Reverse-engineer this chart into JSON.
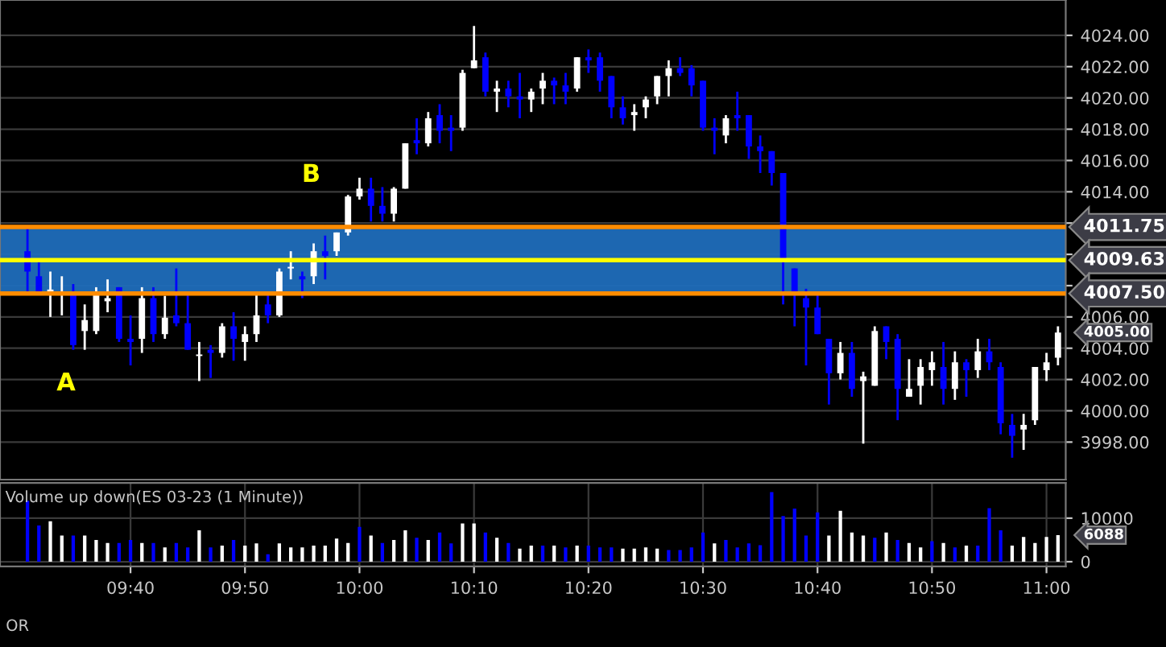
{
  "chart_data": [
    {
      "type": "candlestick",
      "x": [
        9.5167,
        9.5333,
        9.55,
        9.5667,
        9.5833,
        9.6,
        9.6167,
        9.6333,
        9.65,
        9.6667,
        9.6833,
        9.7,
        9.7167,
        9.7333,
        9.75,
        9.7667,
        9.7833,
        9.8,
        9.8167,
        9.8333,
        9.85,
        9.8667,
        9.8833,
        9.9,
        9.9167,
        9.9333,
        9.95,
        9.9667,
        9.9833,
        10.0,
        10.0167,
        10.0333,
        10.05,
        10.0667,
        10.0833,
        10.1,
        10.1167,
        10.1333,
        10.15,
        10.1667,
        10.1833,
        10.2,
        10.2167,
        10.2333,
        10.25,
        10.2667,
        10.2833,
        10.3,
        10.3167,
        10.3333,
        10.35,
        10.3667,
        10.3833,
        10.4,
        10.4167,
        10.4333,
        10.45,
        10.4667,
        10.4833,
        10.5,
        10.5167,
        10.5333,
        10.55,
        10.5667,
        10.5833,
        10.6,
        10.6167,
        10.6333,
        10.65,
        10.6667,
        10.6833,
        10.7,
        10.7167,
        10.7333,
        10.75,
        10.7667,
        10.7833,
        10.8,
        10.8167,
        10.8333,
        10.85,
        10.8667,
        10.8833,
        10.9,
        10.9167,
        10.9333,
        10.95,
        10.9667,
        10.9833,
        11.0,
        11.0167
      ],
      "ohlc": [
        [
          4010.2,
          4011.7,
          4007.6,
          4008.9
        ],
        [
          4008.6,
          4009.5,
          4007.4,
          4007.4
        ],
        [
          4007.5,
          4008.9,
          4006.0,
          4007.75
        ],
        [
          4007.5,
          4008.6,
          4006.1,
          4007.6
        ],
        [
          4007.6,
          4008.1,
          4003.9,
          4004.2
        ],
        [
          4005.1,
          4006.8,
          4003.9,
          4005.8
        ],
        [
          4005.1,
          4007.9,
          4004.9,
          4007.6
        ],
        [
          4007.0,
          4008.4,
          4006.3,
          4007.2
        ],
        [
          4007.9,
          4007.9,
          4004.4,
          4004.6
        ],
        [
          4004.6,
          4006.1,
          4002.9,
          4004.4
        ],
        [
          4004.6,
          4007.9,
          4003.7,
          4007.2
        ],
        [
          4007.2,
          4007.9,
          4004.4,
          4004.9
        ],
        [
          4004.9,
          4007.35,
          4004.6,
          4005.95
        ],
        [
          4006.1,
          4009.1,
          4005.4,
          4005.6
        ],
        [
          4005.6,
          4007.4,
          4003.9,
          4003.9
        ],
        [
          4003.5,
          4004.4,
          4001.9,
          4003.6
        ],
        [
          4003.9,
          4004.2,
          4002.1,
          4003.7
        ],
        [
          4003.7,
          4005.6,
          4003.4,
          4005.4
        ],
        [
          4005.4,
          4006.3,
          4003.2,
          4004.6
        ],
        [
          4004.4,
          4005.4,
          4003.2,
          4004.9
        ],
        [
          4004.9,
          4007.4,
          4004.4,
          4006.1
        ],
        [
          4006.8,
          4007.4,
          4005.6,
          4006.1
        ],
        [
          4006.1,
          4009.1,
          4006.0,
          4008.9
        ],
        [
          4009.1,
          4010.2,
          4008.4,
          4009.2
        ],
        [
          4008.6,
          4008.9,
          4007.2,
          4008.4
        ],
        [
          4008.6,
          4010.7,
          4008.1,
          4010.2
        ],
        [
          4010.2,
          4011.2,
          4008.4,
          4009.9
        ],
        [
          4010.2,
          4011.4,
          4009.9,
          4011.4
        ],
        [
          4011.4,
          4013.8,
          4011.2,
          4013.7
        ],
        [
          4013.7,
          4014.9,
          4013.5,
          4014.2
        ],
        [
          4014.2,
          4014.9,
          4012.1,
          4013.1
        ],
        [
          4013.1,
          4014.3,
          4012.1,
          4012.6
        ],
        [
          4012.6,
          4014.3,
          4012.1,
          4014.2
        ],
        [
          4014.2,
          4017.1,
          4014.2,
          4017.1
        ],
        [
          4017.3,
          4018.7,
          4016.4,
          4017.1
        ],
        [
          4017.1,
          4019.1,
          4016.9,
          4018.7
        ],
        [
          4018.9,
          4019.6,
          4017.1,
          4017.9
        ],
        [
          4018.1,
          4018.9,
          4016.6,
          4017.9
        ],
        [
          4018.1,
          4021.8,
          4017.9,
          4021.6
        ],
        [
          4021.9,
          4024.6,
          4021.9,
          4022.4
        ],
        [
          4022.6,
          4022.9,
          4020.1,
          4020.4
        ],
        [
          4020.4,
          4021.1,
          4019.1,
          4020.6
        ],
        [
          4020.6,
          4021.1,
          4019.4,
          4020.1
        ],
        [
          4020.1,
          4021.6,
          4018.7,
          4019.9
        ],
        [
          4019.9,
          4020.6,
          4019.1,
          4020.4
        ],
        [
          4020.6,
          4021.6,
          4019.6,
          4021.1
        ],
        [
          4021.1,
          4021.3,
          4019.6,
          4020.8
        ],
        [
          4020.8,
          4021.6,
          4019.6,
          4020.4
        ],
        [
          4020.6,
          4022.6,
          4020.4,
          4022.6
        ],
        [
          4022.6,
          4023.1,
          4021.6,
          4022.4
        ],
        [
          4022.6,
          4022.9,
          4020.4,
          4021.1
        ],
        [
          4021.4,
          4021.4,
          4018.7,
          4019.4
        ],
        [
          4019.4,
          4020.1,
          4018.3,
          4018.7
        ],
        [
          4018.9,
          4019.6,
          4017.9,
          4019.1
        ],
        [
          4019.4,
          4020.1,
          4018.7,
          4019.9
        ],
        [
          4020.1,
          4021.4,
          4019.6,
          4021.4
        ],
        [
          4021.4,
          4022.4,
          4020.1,
          4021.9
        ],
        [
          4021.9,
          4022.6,
          4021.4,
          4021.6
        ],
        [
          4021.9,
          4022.1,
          4020.1,
          4020.8
        ],
        [
          4021.1,
          4021.1,
          4017.9,
          4018.1
        ],
        [
          4018.1,
          4018.7,
          4016.4,
          4017.9
        ],
        [
          4017.6,
          4018.9,
          4017.1,
          4018.7
        ],
        [
          4018.9,
          4020.4,
          4017.9,
          4018.7
        ],
        [
          4018.9,
          4018.9,
          4016.1,
          4016.9
        ],
        [
          4016.9,
          4017.6,
          4015.2,
          4016.6
        ],
        [
          4016.6,
          4016.6,
          4014.4,
          4015.2
        ],
        [
          4015.2,
          4015.2,
          4006.8,
          4009.6
        ],
        [
          4009.1,
          4009.1,
          4005.4,
          4007.5
        ],
        [
          4007.2,
          4007.8,
          4002.9,
          4006.6
        ],
        [
          4006.6,
          4007.6,
          4004.9,
          4004.9
        ],
        [
          4004.6,
          4004.6,
          4000.4,
          4002.4
        ],
        [
          4002.4,
          4004.4,
          4002.0,
          4003.7
        ],
        [
          4003.7,
          4004.4,
          4000.9,
          4001.4
        ],
        [
          4001.9,
          4002.5,
          3997.9,
          4002.2
        ],
        [
          4001.6,
          4005.4,
          4001.6,
          4005.1
        ],
        [
          4005.4,
          4005.4,
          4003.3,
          4004.4
        ],
        [
          4004.6,
          4004.9,
          3999.4,
          4001.4
        ],
        [
          4000.9,
          4003.3,
          4000.9,
          4001.4
        ],
        [
          4001.6,
          4003.3,
          4000.4,
          4002.8
        ],
        [
          4002.6,
          4003.8,
          4001.6,
          4003.1
        ],
        [
          4002.8,
          4004.4,
          4000.4,
          4001.4
        ],
        [
          4001.4,
          4003.8,
          4000.7,
          4003.1
        ],
        [
          4003.1,
          4003.3,
          4000.9,
          4002.6
        ],
        [
          4002.6,
          4004.6,
          4002.1,
          4003.8
        ],
        [
          4003.8,
          4004.6,
          4002.6,
          4003.1
        ],
        [
          4002.8,
          4003.1,
          3998.5,
          3999.2
        ],
        [
          3999.1,
          3999.8,
          3997.0,
          3998.4
        ],
        [
          3998.8,
          3999.8,
          3997.5,
          3999.1
        ],
        [
          3999.4,
          4002.8,
          3999.1,
          4002.8
        ],
        [
          4002.6,
          4003.7,
          4001.9,
          4003.1
        ],
        [
          4003.4,
          4005.4,
          4002.9,
          4005.0
        ]
      ],
      "colors": [
        "#0000ff",
        "#0000ff",
        "#ffffff",
        "#ffffff",
        "#0000ff",
        "#ffffff",
        "#ffffff",
        "#ffffff",
        "#0000ff",
        "#0000ff",
        "#ffffff",
        "#0000ff",
        "#ffffff",
        "#0000ff",
        "#0000ff",
        "#ffffff",
        "#0000ff",
        "#ffffff",
        "#0000ff",
        "#ffffff",
        "#ffffff",
        "#0000ff",
        "#ffffff",
        "#ffffff",
        "#0000ff",
        "#ffffff",
        "#0000ff",
        "#ffffff",
        "#ffffff",
        "#ffffff",
        "#0000ff",
        "#0000ff",
        "#ffffff",
        "#ffffff",
        "#0000ff",
        "#ffffff",
        "#0000ff",
        "#0000ff",
        "#ffffff",
        "#ffffff",
        "#0000ff",
        "#ffffff",
        "#0000ff",
        "#0000ff",
        "#ffffff",
        "#ffffff",
        "#0000ff",
        "#0000ff",
        "#ffffff",
        "#0000ff",
        "#0000ff",
        "#0000ff",
        "#0000ff",
        "#ffffff",
        "#ffffff",
        "#ffffff",
        "#ffffff",
        "#0000ff",
        "#0000ff",
        "#0000ff",
        "#0000ff",
        "#ffffff",
        "#0000ff",
        "#0000ff",
        "#0000ff",
        "#0000ff",
        "#0000ff",
        "#0000ff",
        "#0000ff",
        "#0000ff",
        "#0000ff",
        "#ffffff",
        "#0000ff",
        "#ffffff",
        "#ffffff",
        "#0000ff",
        "#0000ff",
        "#ffffff",
        "#ffffff",
        "#ffffff",
        "#0000ff",
        "#ffffff",
        "#0000ff",
        "#ffffff",
        "#0000ff",
        "#0000ff",
        "#0000ff",
        "#ffffff",
        "#ffffff",
        "#ffffff",
        "#ffffff"
      ],
      "xlim": [
        9.4767,
        11.028
      ],
      "ylim": [
        3995.6,
        4026.26
      ],
      "yticks": [
        {
          "value": 3998,
          "label": "3998.00"
        },
        {
          "value": 4000,
          "label": "4000.00"
        },
        {
          "value": 4002,
          "label": "4002.00"
        },
        {
          "value": 4004,
          "label": "4004.00"
        },
        {
          "value": 4006,
          "label": "4006.00"
        },
        {
          "value": 4008,
          "label": null
        },
        {
          "value": 4010,
          "label": null
        },
        {
          "value": 4012,
          "label": null
        },
        {
          "value": 4014,
          "label": "4014.00"
        },
        {
          "value": 4016,
          "label": "4016.00"
        },
        {
          "value": 4018,
          "label": "4018.00"
        },
        {
          "value": 4020,
          "label": "4020.00"
        },
        {
          "value": 4022,
          "label": "4022.00"
        },
        {
          "value": 4024,
          "label": "4024.00"
        }
      ],
      "bands": [
        {
          "axis": "y",
          "from": 4007.5,
          "to": 4011.75,
          "color": "#1f6dbb"
        }
      ],
      "ref_lines": [
        {
          "axis": "y",
          "value": 4011.75,
          "label": "4011.75",
          "color": "#ff8c00"
        },
        {
          "axis": "y",
          "value": 4009.63,
          "label": "4009.63",
          "color": "#ffff00"
        },
        {
          "axis": "y",
          "value": 4007.5,
          "label": "4007.50",
          "color": "#ff8c00"
        }
      ],
      "annotations": [
        "A",
        "B",
        {
          "text": "4005.00",
          "x": 11.0167,
          "y": 4005.0
        }
      ],
      "grid": true,
      "tick_labels": "y"
    },
    {
      "type": "bar",
      "title": "Volume up down(ES 03-23 (1 Minute))",
      "x": [
        9.5167,
        9.5333,
        9.55,
        9.5667,
        9.5833,
        9.6,
        9.6167,
        9.6333,
        9.65,
        9.6667,
        9.6833,
        9.7,
        9.7167,
        9.7333,
        9.75,
        9.7667,
        9.7833,
        9.8,
        9.8167,
        9.8333,
        9.85,
        9.8667,
        9.8833,
        9.9,
        9.9167,
        9.9333,
        9.95,
        9.9667,
        9.9833,
        10.0,
        10.0167,
        10.0333,
        10.05,
        10.0667,
        10.0833,
        10.1,
        10.1167,
        10.1333,
        10.15,
        10.1667,
        10.1833,
        10.2,
        10.2167,
        10.2333,
        10.25,
        10.2667,
        10.2833,
        10.3,
        10.3167,
        10.3333,
        10.35,
        10.3667,
        10.3833,
        10.4,
        10.4167,
        10.4333,
        10.45,
        10.4667,
        10.4833,
        10.5,
        10.5167,
        10.5333,
        10.55,
        10.5667,
        10.5833,
        10.6,
        10.6167,
        10.6333,
        10.65,
        10.6667,
        10.6833,
        10.7,
        10.7167,
        10.7333,
        10.75,
        10.7667,
        10.7833,
        10.8,
        10.8167,
        10.8333,
        10.85,
        10.8667,
        10.8833,
        10.9,
        10.9167,
        10.9333,
        10.95,
        10.9667,
        10.9833,
        11.0,
        11.0167
      ],
      "values": [
        14000,
        8300,
        9300,
        6000,
        6000,
        6000,
        5000,
        4300,
        4300,
        5000,
        4300,
        4300,
        3300,
        4300,
        3300,
        7200,
        3300,
        3700,
        5000,
        3700,
        4200,
        1700,
        4200,
        3300,
        3300,
        3700,
        3700,
        5300,
        4300,
        8000,
        6000,
        4300,
        5000,
        7200,
        5500,
        5000,
        6700,
        4200,
        8800,
        8800,
        6700,
        5500,
        4300,
        3000,
        3700,
        3700,
        3700,
        3300,
        3700,
        3700,
        3300,
        3300,
        3000,
        3000,
        3300,
        3000,
        2700,
        2700,
        3300,
        6700,
        4200,
        5000,
        3300,
        4200,
        3800,
        16000,
        10500,
        12200,
        6000,
        11300,
        6000,
        11700,
        6700,
        6000,
        5500,
        6700,
        5000,
        4300,
        3300,
        4700,
        4300,
        3300,
        3700,
        3700,
        12300,
        7200,
        3700,
        5700,
        4300,
        5700,
        6088
      ],
      "colors": [
        "#0000ff",
        "#0000ff",
        "#ffffff",
        "#ffffff",
        "#0000ff",
        "#ffffff",
        "#ffffff",
        "#ffffff",
        "#0000ff",
        "#0000ff",
        "#ffffff",
        "#0000ff",
        "#ffffff",
        "#0000ff",
        "#0000ff",
        "#ffffff",
        "#0000ff",
        "#ffffff",
        "#0000ff",
        "#ffffff",
        "#ffffff",
        "#0000ff",
        "#ffffff",
        "#ffffff",
        "#ffffff",
        "#ffffff",
        "#ffffff",
        "#ffffff",
        "#ffffff",
        "#0000ff",
        "#ffffff",
        "#0000ff",
        "#ffffff",
        "#ffffff",
        "#0000ff",
        "#ffffff",
        "#0000ff",
        "#0000ff",
        "#ffffff",
        "#ffffff",
        "#0000ff",
        "#ffffff",
        "#0000ff",
        "#ffffff",
        "#ffffff",
        "#0000ff",
        "#ffffff",
        "#0000ff",
        "#ffffff",
        "#0000ff",
        "#0000ff",
        "#0000ff",
        "#ffffff",
        "#ffffff",
        "#ffffff",
        "#ffffff",
        "#0000ff",
        "#0000ff",
        "#0000ff",
        "#0000ff",
        "#ffffff",
        "#0000ff",
        "#0000ff",
        "#0000ff",
        "#0000ff",
        "#0000ff",
        "#0000ff",
        "#0000ff",
        "#0000ff",
        "#0000ff",
        "#ffffff",
        "#ffffff",
        "#ffffff",
        "#ffffff",
        "#0000ff",
        "#ffffff",
        "#0000ff",
        "#ffffff",
        "#ffffff",
        "#0000ff",
        "#ffffff",
        "#0000ff",
        "#ffffff",
        "#0000ff",
        "#0000ff",
        "#0000ff",
        "#ffffff",
        "#ffffff",
        "#ffffff",
        "#ffffff",
        "#ffffff"
      ],
      "xlim": [
        9.4767,
        11.028
      ],
      "ylim": [
        -1100,
        18100
      ],
      "yticks": [
        0,
        10000
      ],
      "xticks": [
        {
          "value": 9.6667,
          "label": "09:40"
        },
        {
          "value": 9.8333,
          "label": "09:50"
        },
        {
          "value": 10.0,
          "label": "10:00"
        },
        {
          "value": 10.1667,
          "label": "10:10"
        },
        {
          "value": 10.3333,
          "label": "10:20"
        },
        {
          "value": 10.5,
          "label": "10:30"
        },
        {
          "value": 10.6667,
          "label": "10:40"
        },
        {
          "value": 10.8333,
          "label": "10:50"
        },
        {
          "value": 11.0,
          "label": "11:00"
        }
      ],
      "annotations": [
        {
          "text": "6088",
          "x": 11.0167,
          "y": 6088
        },
        "OR"
      ],
      "grid": true
    }
  ]
}
